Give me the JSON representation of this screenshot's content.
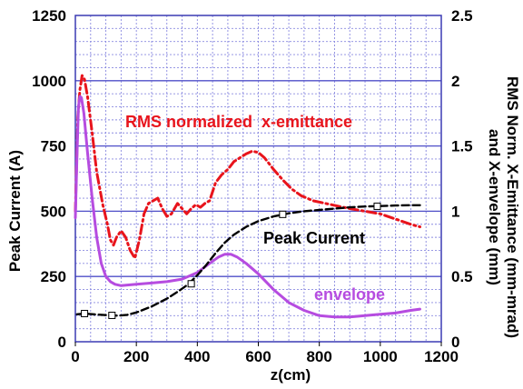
{
  "chart_data": {
    "type": "line",
    "x_label": "z(cm)",
    "x_ticks": [
      "0",
      "200",
      "400",
      "600",
      "800",
      "1000",
      "1200"
    ],
    "x_range": [
      0,
      1200
    ],
    "y_left_label": "Peak Current (A)",
    "y_left_ticks": [
      "0",
      "250",
      "500",
      "750",
      "1000",
      "1250"
    ],
    "y_left_range": [
      0,
      1250
    ],
    "y_right_label_line1": "RMS Norm. X-Emittance (mm-mrad)",
    "y_right_label_line2": "and X-envelope (mm)",
    "y_right_ticks": [
      "0",
      "0.5",
      "1",
      "1.5",
      "2",
      "2.5"
    ],
    "y_right_range": [
      0,
      2.5
    ],
    "grid": true,
    "colors": {
      "emittance": "#e8141c",
      "envelope": "#b64ce0",
      "current": "#000000",
      "major_grid": "#4f4fc8",
      "minor_grid": "#8a8ae0",
      "frame": "#3a3ab4"
    },
    "annotations": {
      "emittance": "RMS normalized  x-emittance",
      "current": "Peak Current",
      "envelope": "envelope"
    },
    "series": [
      {
        "key": "emittance",
        "axis": "right",
        "style": "dash-dot",
        "points": [
          [
            0,
            1.0
          ],
          [
            8,
            1.72
          ],
          [
            15,
            1.93
          ],
          [
            22,
            2.04
          ],
          [
            30,
            2.01
          ],
          [
            40,
            1.88
          ],
          [
            55,
            1.6
          ],
          [
            70,
            1.3
          ],
          [
            90,
            1.05
          ],
          [
            105,
            0.9
          ],
          [
            115,
            0.78
          ],
          [
            125,
            0.74
          ],
          [
            135,
            0.8
          ],
          [
            150,
            0.85
          ],
          [
            165,
            0.8
          ],
          [
            180,
            0.7
          ],
          [
            195,
            0.64
          ],
          [
            210,
            0.78
          ],
          [
            225,
            0.98
          ],
          [
            240,
            1.06
          ],
          [
            255,
            1.08
          ],
          [
            270,
            1.1
          ],
          [
            285,
            1.02
          ],
          [
            300,
            0.96
          ],
          [
            315,
            0.98
          ],
          [
            335,
            1.06
          ],
          [
            350,
            1.02
          ],
          [
            365,
            0.98
          ],
          [
            380,
            1.02
          ],
          [
            395,
            1.05
          ],
          [
            410,
            1.03
          ],
          [
            425,
            1.06
          ],
          [
            440,
            1.08
          ],
          [
            460,
            1.22
          ],
          [
            480,
            1.28
          ],
          [
            500,
            1.32
          ],
          [
            520,
            1.38
          ],
          [
            540,
            1.41
          ],
          [
            560,
            1.44
          ],
          [
            580,
            1.46
          ],
          [
            600,
            1.45
          ],
          [
            620,
            1.41
          ],
          [
            650,
            1.32
          ],
          [
            680,
            1.24
          ],
          [
            710,
            1.17
          ],
          [
            740,
            1.12
          ],
          [
            780,
            1.08
          ],
          [
            820,
            1.06
          ],
          [
            860,
            1.04
          ],
          [
            900,
            1.02
          ],
          [
            950,
            1.0
          ],
          [
            1000,
            0.98
          ],
          [
            1050,
            0.94
          ],
          [
            1100,
            0.9
          ],
          [
            1130,
            0.88
          ]
        ]
      },
      {
        "key": "envelope",
        "axis": "right",
        "style": "solid",
        "points": [
          [
            0,
            0.95
          ],
          [
            5,
            1.4
          ],
          [
            10,
            1.8
          ],
          [
            15,
            1.88
          ],
          [
            20,
            1.87
          ],
          [
            28,
            1.75
          ],
          [
            40,
            1.45
          ],
          [
            55,
            1.1
          ],
          [
            70,
            0.8
          ],
          [
            85,
            0.6
          ],
          [
            100,
            0.5
          ],
          [
            115,
            0.46
          ],
          [
            130,
            0.44
          ],
          [
            150,
            0.43
          ],
          [
            200,
            0.44
          ],
          [
            250,
            0.45
          ],
          [
            300,
            0.46
          ],
          [
            350,
            0.48
          ],
          [
            400,
            0.53
          ],
          [
            440,
            0.6
          ],
          [
            470,
            0.65
          ],
          [
            490,
            0.67
          ],
          [
            510,
            0.67
          ],
          [
            530,
            0.65
          ],
          [
            560,
            0.6
          ],
          [
            600,
            0.52
          ],
          [
            650,
            0.4
          ],
          [
            700,
            0.3
          ],
          [
            750,
            0.24
          ],
          [
            800,
            0.2
          ],
          [
            850,
            0.19
          ],
          [
            900,
            0.19
          ],
          [
            950,
            0.2
          ],
          [
            1000,
            0.21
          ],
          [
            1050,
            0.22
          ],
          [
            1100,
            0.24
          ],
          [
            1130,
            0.25
          ]
        ]
      },
      {
        "key": "current",
        "axis": "left",
        "style": "dash",
        "points": [
          [
            5,
            105
          ],
          [
            30,
            108
          ],
          [
            60,
            105
          ],
          [
            100,
            102
          ],
          [
            140,
            100
          ],
          [
            170,
            103
          ],
          [
            200,
            112
          ],
          [
            250,
            135
          ],
          [
            300,
            165
          ],
          [
            340,
            195
          ],
          [
            370,
            220
          ],
          [
            400,
            255
          ],
          [
            430,
            295
          ],
          [
            460,
            340
          ],
          [
            490,
            380
          ],
          [
            520,
            410
          ],
          [
            560,
            440
          ],
          [
            600,
            462
          ],
          [
            650,
            480
          ],
          [
            700,
            492
          ],
          [
            750,
            500
          ],
          [
            800,
            505
          ],
          [
            850,
            510
          ],
          [
            900,
            515
          ],
          [
            950,
            518
          ],
          [
            1000,
            520
          ],
          [
            1050,
            522
          ],
          [
            1100,
            523
          ],
          [
            1130,
            523
          ]
        ],
        "markers": [
          [
            30,
            108
          ],
          [
            120,
            101
          ],
          [
            380,
            222
          ],
          [
            680,
            488
          ],
          [
            990,
            519
          ]
        ]
      }
    ]
  }
}
